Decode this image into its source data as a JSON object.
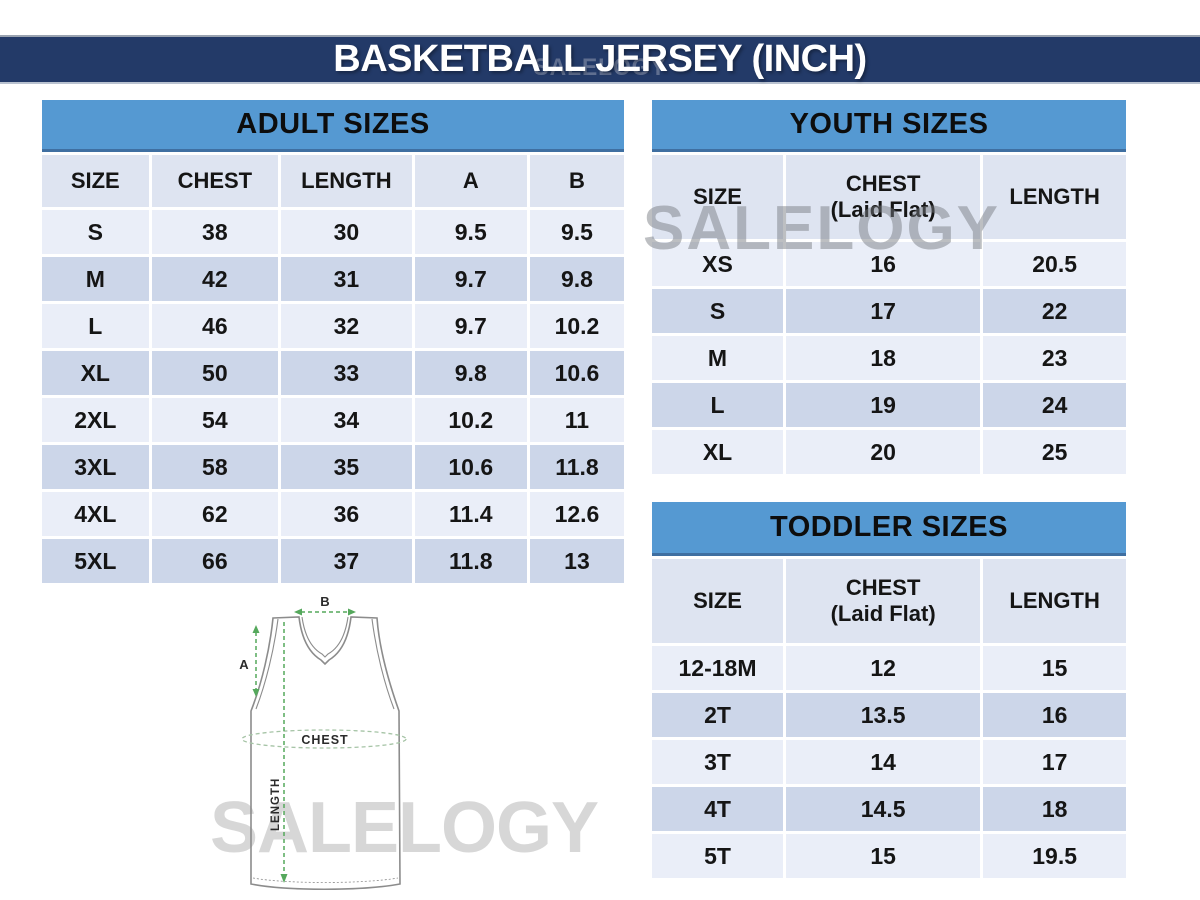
{
  "header": {
    "title": "BASKETBALL JERSEY (INCH)"
  },
  "watermark": {
    "text": "SALELOGY"
  },
  "colors": {
    "title_band_navy": "#233a68",
    "table_band_blue": "#5599d2",
    "table_band_border": "#3f6fa1",
    "row_light": "#eaeef8",
    "row_dark": "#ccd6e9",
    "column_header_row": "#dee4f1",
    "measurement_green": "#55a85c",
    "watermark_gray": "#d7d7d7"
  },
  "tables": {
    "adult": {
      "title": "ADULT SIZES",
      "columns": [
        "SIZE",
        "CHEST",
        "LENGTH",
        "A",
        "B"
      ],
      "rows": [
        [
          "S",
          "38",
          "30",
          "9.5",
          "9.5"
        ],
        [
          "M",
          "42",
          "31",
          "9.7",
          "9.8"
        ],
        [
          "L",
          "46",
          "32",
          "9.7",
          "10.2"
        ],
        [
          "XL",
          "50",
          "33",
          "9.8",
          "10.6"
        ],
        [
          "2XL",
          "54",
          "34",
          "10.2",
          "11"
        ],
        [
          "3XL",
          "58",
          "35",
          "10.6",
          "11.8"
        ],
        [
          "4XL",
          "62",
          "36",
          "11.4",
          "12.6"
        ],
        [
          "5XL",
          "66",
          "37",
          "11.8",
          "13"
        ]
      ]
    },
    "youth": {
      "title": "YOUTH SIZES",
      "columns": [
        "SIZE",
        "CHEST\n(Laid Flat)",
        "LENGTH"
      ],
      "rows": [
        [
          "XS",
          "16",
          "20.5"
        ],
        [
          "S",
          "17",
          "22"
        ],
        [
          "M",
          "18",
          "23"
        ],
        [
          "L",
          "19",
          "24"
        ],
        [
          "XL",
          "20",
          "25"
        ]
      ]
    },
    "toddler": {
      "title": "TODDLER SIZES",
      "columns": [
        "SIZE",
        "CHEST\n(Laid Flat)",
        "LENGTH"
      ],
      "rows": [
        [
          "12-18M",
          "12",
          "15"
        ],
        [
          "2T",
          "13.5",
          "16"
        ],
        [
          "3T",
          "14",
          "17"
        ],
        [
          "4T",
          "14.5",
          "18"
        ],
        [
          "5T",
          "15",
          "19.5"
        ]
      ]
    }
  },
  "diagram": {
    "label_a": "A",
    "label_b": "B",
    "label_chest": "CHEST",
    "label_length": "LENGTH"
  }
}
